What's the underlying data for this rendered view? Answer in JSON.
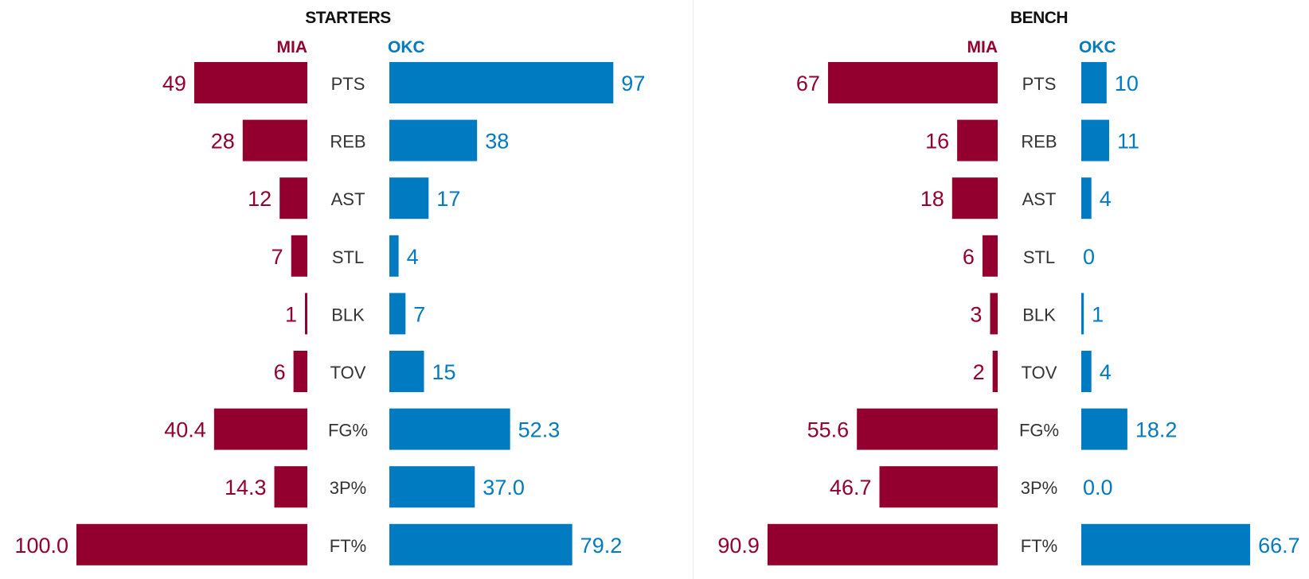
{
  "colors": {
    "mia": "#93002f",
    "okc": "#007ac1",
    "label": "#333333",
    "title": "#111111"
  },
  "chart_data": [
    {
      "type": "bar",
      "orientation": "horizontal-diverging",
      "title": "STARTERS",
      "categories": [
        "PTS",
        "REB",
        "AST",
        "STL",
        "BLK",
        "TOV",
        "FG%",
        "3P%",
        "FT%"
      ],
      "series": [
        {
          "name": "MIA",
          "side": "left",
          "values": [
            49,
            28,
            12,
            7,
            1,
            6,
            40.4,
            14.3,
            100.0
          ],
          "labels": [
            "49",
            "28",
            "12",
            "7",
            "1",
            "6",
            "40.4",
            "14.3",
            "100.0"
          ]
        },
        {
          "name": "OKC",
          "side": "right",
          "values": [
            97,
            38,
            17,
            4,
            7,
            15,
            52.3,
            37.0,
            79.2
          ],
          "labels": [
            "97",
            "38",
            "17",
            "4",
            "7",
            "15",
            "52.3",
            "37.0",
            "79.2"
          ]
        }
      ]
    },
    {
      "type": "bar",
      "orientation": "horizontal-diverging",
      "title": "BENCH",
      "categories": [
        "PTS",
        "REB",
        "AST",
        "STL",
        "BLK",
        "TOV",
        "FG%",
        "3P%",
        "FT%"
      ],
      "series": [
        {
          "name": "MIA",
          "side": "left",
          "values": [
            67,
            16,
            18,
            6,
            3,
            2,
            55.6,
            46.7,
            90.9
          ],
          "labels": [
            "67",
            "16",
            "18",
            "6",
            "3",
            "2",
            "55.6",
            "46.7",
            "90.9"
          ]
        },
        {
          "name": "OKC",
          "side": "right",
          "values": [
            10,
            11,
            4,
            0,
            1,
            4,
            18.2,
            0.0,
            66.7
          ],
          "labels": [
            "10",
            "11",
            "4",
            "0",
            "1",
            "4",
            "18.2",
            "0.0",
            "66.7"
          ]
        }
      ]
    }
  ]
}
